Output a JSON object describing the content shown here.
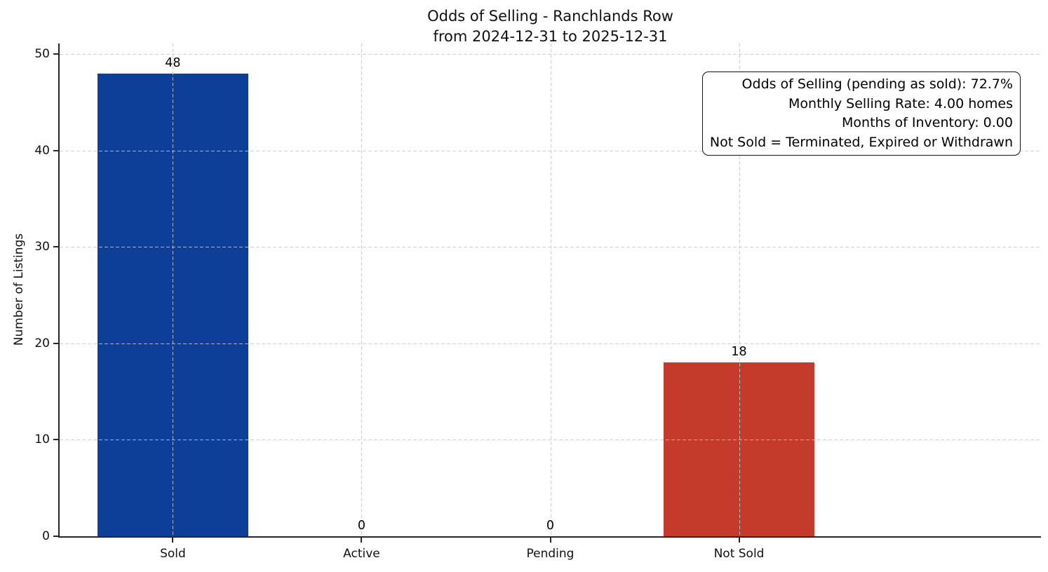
{
  "chart_data": {
    "type": "bar",
    "title": "Odds of Selling - Ranchlands Row",
    "subtitle": "from 2024-12-31 to 2025-12-31",
    "categories": [
      "Sold",
      "Active",
      "Pending",
      "Not Sold"
    ],
    "values": [
      48,
      0,
      0,
      18
    ],
    "value_labels": [
      "48",
      "0",
      "0",
      "18"
    ],
    "bar_colors": [
      "#0d3e98",
      "#0d3e98",
      "#0d3e98",
      "#c43b2c"
    ],
    "xlabel": "",
    "ylabel": "Number of Listings",
    "yticks": [
      0,
      10,
      20,
      30,
      40,
      50
    ],
    "ylim": [
      0,
      51.1
    ],
    "grid": "dashed-both-axes",
    "legend": "none",
    "annotation_box": {
      "align": "right",
      "lines": [
        "Odds of Selling (pending as sold): 72.7%",
        "Monthly Selling Rate: 4.00 homes",
        "Months of Inventory: 0.00",
        "Not Sold = Terminated, Expired or Withdrawn"
      ]
    },
    "colors": {
      "sold_bar": "#0d3e98",
      "not_sold_bar": "#c43b2c",
      "gridline": "#c8c8c8",
      "spine": "#262626"
    }
  }
}
